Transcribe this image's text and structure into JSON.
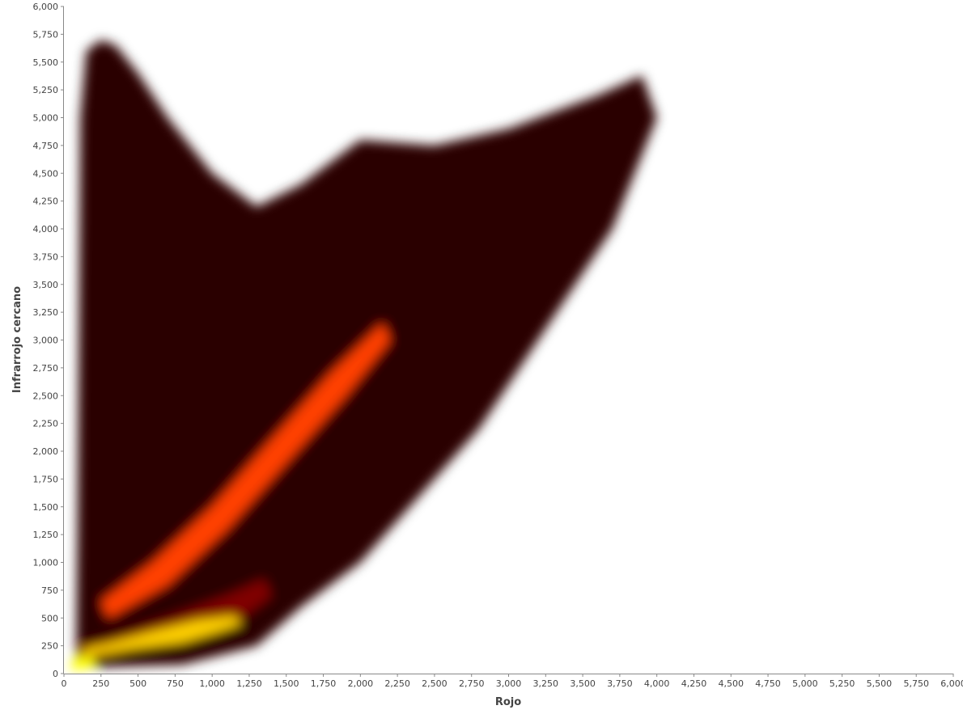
{
  "chart_data": {
    "type": "heatmap",
    "title": "",
    "xlabel": "Rojo",
    "ylabel": "Infrarrojo cercano",
    "xlim": [
      0,
      6000
    ],
    "ylim": [
      0,
      6000
    ],
    "grid": false,
    "colormap": [
      "#000000",
      "#2a0000",
      "#800000",
      "#d01000",
      "#ff4000",
      "#ff9000",
      "#ffd000",
      "#ffff00"
    ],
    "x_ticks": [
      "0",
      "250",
      "500",
      "750",
      "1,000",
      "1,250",
      "1,500",
      "1,750",
      "2,000",
      "2,250",
      "2,500",
      "2,750",
      "3,000",
      "3,250",
      "3,500",
      "3,750",
      "4,000",
      "4,250",
      "4,500",
      "4,750",
      "5,000",
      "5,250",
      "5,500",
      "5,750",
      "6,000"
    ],
    "y_ticks": [
      "0",
      "250",
      "500",
      "750",
      "1,000",
      "1,250",
      "1,500",
      "1,750",
      "2,000",
      "2,250",
      "2,500",
      "2,750",
      "3,000",
      "3,250",
      "3,500",
      "3,750",
      "4,000",
      "4,250",
      "4,500",
      "4,750",
      "5,000",
      "5,250",
      "5,500",
      "5,750",
      "6,000"
    ],
    "density_regions": [
      {
        "name": "vegetation-core",
        "density": 1.0,
        "polygon": [
          [
            150,
            1250
          ],
          [
            300,
            1400
          ],
          [
            420,
            1900
          ],
          [
            700,
            2050
          ],
          [
            950,
            2400
          ],
          [
            1150,
            2800
          ],
          [
            1200,
            3100
          ],
          [
            1050,
            3400
          ],
          [
            800,
            3700
          ],
          [
            500,
            4100
          ],
          [
            350,
            4250
          ],
          [
            200,
            4200
          ],
          [
            170,
            3800
          ],
          [
            160,
            3000
          ],
          [
            180,
            2450
          ],
          [
            150,
            1900
          ]
        ]
      },
      {
        "name": "vegetation-halo",
        "density": 0.75,
        "polygon": [
          [
            130,
            900
          ],
          [
            350,
            1100
          ],
          [
            500,
            1500
          ],
          [
            800,
            1800
          ],
          [
            1100,
            2300
          ],
          [
            1300,
            2800
          ],
          [
            1350,
            3100
          ],
          [
            1200,
            3500
          ],
          [
            900,
            3900
          ],
          [
            600,
            4400
          ],
          [
            350,
            4700
          ],
          [
            200,
            4800
          ],
          [
            140,
            4300
          ],
          [
            130,
            3000
          ],
          [
            120,
            1800
          ]
        ]
      },
      {
        "name": "vegetation-outer",
        "density": 0.45,
        "polygon": [
          [
            100,
            300
          ],
          [
            300,
            500
          ],
          [
            700,
            1000
          ],
          [
            1100,
            1500
          ],
          [
            1400,
            2000
          ],
          [
            1700,
            2700
          ],
          [
            1750,
            3100
          ],
          [
            1400,
            3500
          ],
          [
            1000,
            4100
          ],
          [
            700,
            4700
          ],
          [
            450,
            5100
          ],
          [
            250,
            5300
          ],
          [
            150,
            5200
          ],
          [
            120,
            4000
          ],
          [
            100,
            2000
          ]
        ]
      },
      {
        "name": "background-cloud",
        "density": 0.12,
        "polygon": [
          [
            80,
            50
          ],
          [
            800,
            80
          ],
          [
            1300,
            250
          ],
          [
            1600,
            600
          ],
          [
            2000,
            1000
          ],
          [
            2400,
            1600
          ],
          [
            2800,
            2200
          ],
          [
            3200,
            3000
          ],
          [
            3700,
            4000
          ],
          [
            4000,
            5000
          ],
          [
            3900,
            5380
          ],
          [
            3600,
            5200
          ],
          [
            3000,
            4900
          ],
          [
            2500,
            4750
          ],
          [
            2000,
            4800
          ],
          [
            1600,
            4400
          ],
          [
            1300,
            4200
          ],
          [
            1000,
            4500
          ],
          [
            700,
            5000
          ],
          [
            500,
            5400
          ],
          [
            350,
            5650
          ],
          [
            250,
            5700
          ],
          [
            150,
            5600
          ],
          [
            110,
            5000
          ],
          [
            100,
            3000
          ],
          [
            90,
            1200
          ]
        ]
      },
      {
        "name": "soil-line-band",
        "density": 0.35,
        "polygon": [
          [
            100,
            120
          ],
          [
            400,
            200
          ],
          [
            900,
            350
          ],
          [
            1200,
            500
          ],
          [
            1400,
            700
          ],
          [
            1350,
            850
          ],
          [
            1100,
            700
          ],
          [
            700,
            500
          ],
          [
            300,
            320
          ],
          [
            100,
            250
          ]
        ]
      },
      {
        "name": "soil-line-hot",
        "density": 0.85,
        "polygon": [
          [
            150,
            150
          ],
          [
            450,
            220
          ],
          [
            800,
            280
          ],
          [
            1050,
            380
          ],
          [
            1200,
            450
          ],
          [
            1150,
            520
          ],
          [
            900,
            480
          ],
          [
            600,
            380
          ],
          [
            300,
            270
          ],
          [
            130,
            220
          ]
        ]
      },
      {
        "name": "origin-hot",
        "density": 0.95,
        "polygon": [
          [
            50,
            30
          ],
          [
            150,
            40
          ],
          [
            220,
            90
          ],
          [
            170,
            160
          ],
          [
            80,
            140
          ],
          [
            40,
            80
          ]
        ]
      },
      {
        "name": "diagonal-ridge",
        "density": 0.55,
        "polygon": [
          [
            300,
            500
          ],
          [
            700,
            800
          ],
          [
            1100,
            1300
          ],
          [
            1500,
            1900
          ],
          [
            1900,
            2500
          ],
          [
            2200,
            3000
          ],
          [
            2150,
            3150
          ],
          [
            1800,
            2700
          ],
          [
            1400,
            2100
          ],
          [
            1000,
            1500
          ],
          [
            600,
            1000
          ],
          [
            250,
            650
          ]
        ]
      }
    ]
  }
}
